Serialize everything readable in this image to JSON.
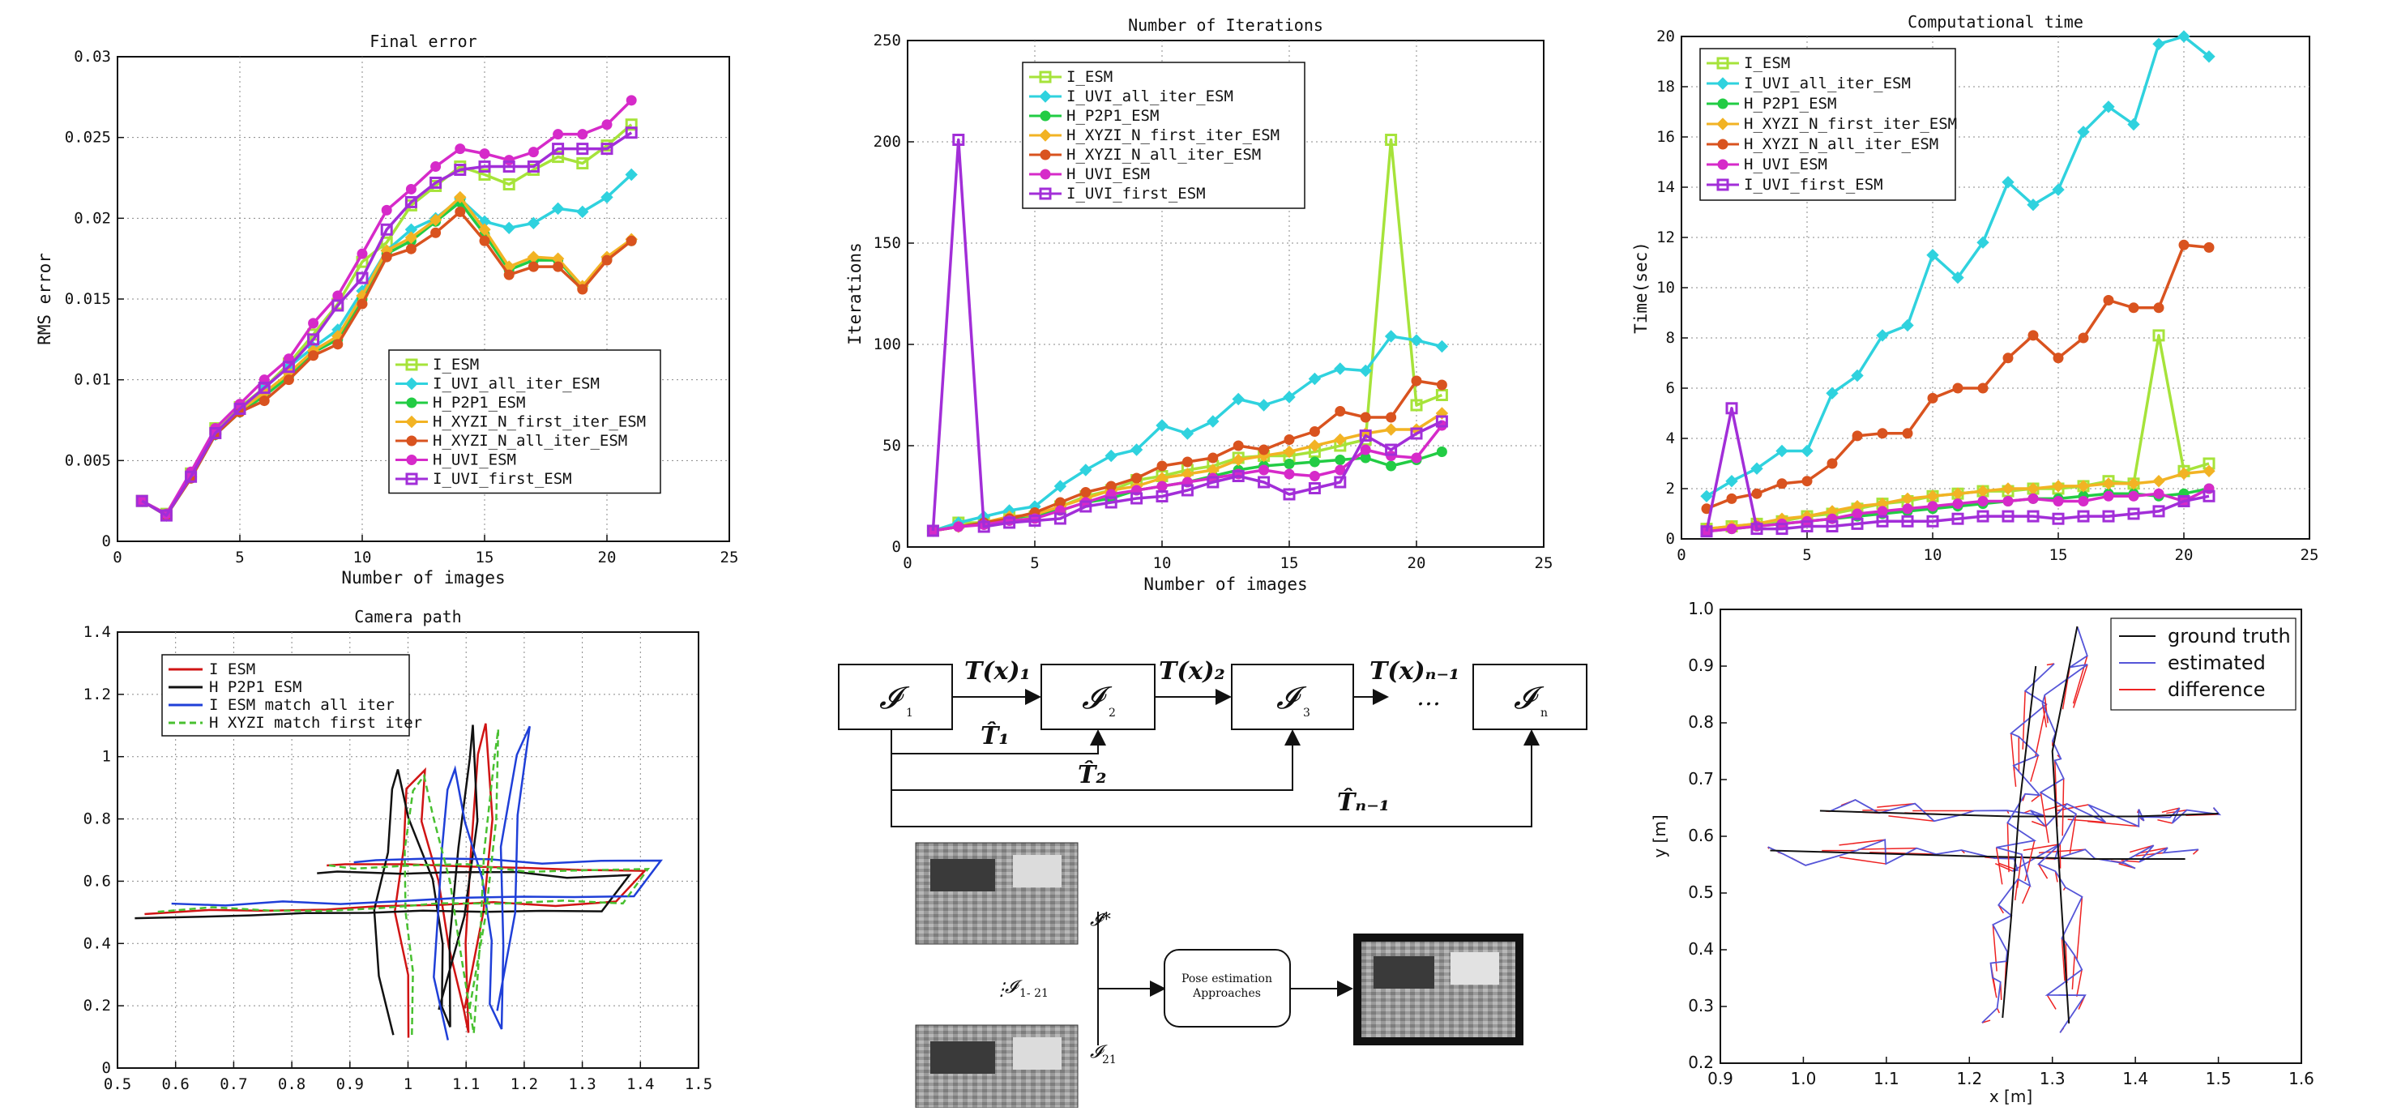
{
  "chart_data": [
    {
      "id": "final_error",
      "type": "line",
      "title": "Final error",
      "xlabel": "Number of images",
      "ylabel": "RMS error",
      "xlim": [
        0,
        25
      ],
      "ylim": [
        0,
        0.03
      ],
      "xticks": [
        "0",
        "5",
        "10",
        "15",
        "20",
        "25"
      ],
      "yticks": [
        "0",
        "0.005",
        "0.01",
        "0.015",
        "0.02",
        "0.025",
        "0.03"
      ],
      "grid": true,
      "legend_position": "center-right",
      "x": [
        1,
        2,
        3,
        4,
        5,
        6,
        7,
        8,
        9,
        10,
        11,
        12,
        13,
        14,
        15,
        16,
        17,
        18,
        19,
        20,
        21
      ],
      "series": [
        {
          "name": "I_ESM",
          "color": "#a6e33a",
          "marker": "square",
          "values": [
            0.0025,
            0.0017,
            0.0042,
            0.007,
            0.0083,
            0.0095,
            0.011,
            0.0128,
            0.0147,
            0.0173,
            0.0185,
            0.0208,
            0.022,
            0.0232,
            0.0227,
            0.0221,
            0.023,
            0.0238,
            0.0234,
            0.0245,
            0.0258
          ]
        },
        {
          "name": "I_UVI_all_iter_ESM",
          "color": "#2fd2de",
          "marker": "diamond",
          "values": [
            0.0025,
            0.0016,
            0.004,
            0.0066,
            0.008,
            0.0095,
            0.0108,
            0.012,
            0.0131,
            0.0155,
            0.018,
            0.0193,
            0.02,
            0.0212,
            0.0198,
            0.0194,
            0.0197,
            0.0206,
            0.0204,
            0.0213,
            0.0227
          ]
        },
        {
          "name": "H_P2P1_ESM",
          "color": "#22cc44",
          "marker": "circle",
          "values": [
            0.0025,
            0.0016,
            0.0039,
            0.0066,
            0.008,
            0.009,
            0.0102,
            0.0117,
            0.0125,
            0.015,
            0.0178,
            0.0186,
            0.0198,
            0.021,
            0.019,
            0.0168,
            0.0174,
            0.0174,
            0.0157,
            0.0175,
            0.0186
          ]
        },
        {
          "name": "H_XYZI_N_first_iter_ESM",
          "color": "#f2b324",
          "marker": "diamond",
          "values": [
            0.0025,
            0.0016,
            0.004,
            0.0067,
            0.0081,
            0.0092,
            0.0104,
            0.0118,
            0.0127,
            0.0152,
            0.018,
            0.0188,
            0.0199,
            0.0213,
            0.0193,
            0.017,
            0.0176,
            0.0175,
            0.0158,
            0.0176,
            0.0187
          ]
        },
        {
          "name": "H_XYZI_N_all_iter_ESM",
          "color": "#d9531f",
          "marker": "circle",
          "values": [
            0.0025,
            0.0016,
            0.0039,
            0.0066,
            0.008,
            0.0087,
            0.01,
            0.0115,
            0.0122,
            0.0147,
            0.0176,
            0.0181,
            0.0191,
            0.0204,
            0.0186,
            0.0165,
            0.017,
            0.017,
            0.0156,
            0.0174,
            0.0186
          ]
        },
        {
          "name": "H_UVI_ESM",
          "color": "#d62ac9",
          "marker": "circle",
          "values": [
            0.0025,
            0.0017,
            0.0043,
            0.007,
            0.0085,
            0.01,
            0.0113,
            0.0135,
            0.0152,
            0.0178,
            0.0205,
            0.0218,
            0.0232,
            0.0243,
            0.024,
            0.0236,
            0.0241,
            0.0252,
            0.0252,
            0.0258,
            0.0273
          ]
        },
        {
          "name": "I_UVI_first_ESM",
          "color": "#a22ed8",
          "marker": "square",
          "values": [
            0.0025,
            0.0016,
            0.004,
            0.0067,
            0.0082,
            0.0095,
            0.0108,
            0.0125,
            0.0146,
            0.0163,
            0.0193,
            0.021,
            0.0222,
            0.023,
            0.0232,
            0.0232,
            0.0232,
            0.0243,
            0.0243,
            0.0243,
            0.0253
          ]
        }
      ]
    },
    {
      "id": "iterations",
      "type": "line",
      "title": "Number of Iterations",
      "xlabel": "Number of images",
      "ylabel": "Iterations",
      "xlim": [
        0,
        25
      ],
      "ylim": [
        0,
        250
      ],
      "xticks": [
        "0",
        "5",
        "10",
        "15",
        "20",
        "25"
      ],
      "yticks": [
        "0",
        "50",
        "100",
        "150",
        "200",
        "250"
      ],
      "grid": true,
      "legend_position": "top-left",
      "x": [
        1,
        2,
        3,
        4,
        5,
        6,
        7,
        8,
        9,
        10,
        11,
        12,
        13,
        14,
        15,
        16,
        17,
        18,
        19,
        20,
        21
      ],
      "series": [
        {
          "name": "I_ESM",
          "color": "#a6e33a",
          "marker": "square",
          "values": [
            8,
            12,
            12,
            15,
            15,
            20,
            25,
            28,
            33,
            35,
            38,
            40,
            44,
            45,
            45,
            47,
            50,
            53,
            201,
            70,
            75
          ]
        },
        {
          "name": "I_UVI_all_iter_ESM",
          "color": "#2fd2de",
          "marker": "diamond",
          "values": [
            8,
            12,
            15,
            18,
            20,
            30,
            38,
            45,
            48,
            60,
            56,
            62,
            73,
            70,
            74,
            83,
            88,
            87,
            104,
            102,
            99
          ]
        },
        {
          "name": "H_P2P1_ESM",
          "color": "#22cc44",
          "marker": "circle",
          "values": [
            8,
            10,
            12,
            14,
            16,
            18,
            22,
            24,
            28,
            30,
            32,
            35,
            38,
            40,
            41,
            42,
            43,
            44,
            40,
            43,
            47
          ]
        },
        {
          "name": "H_XYZI_N_first_iter_ESM",
          "color": "#f2b324",
          "marker": "diamond",
          "values": [
            8,
            10,
            12,
            15,
            16,
            20,
            24,
            28,
            30,
            34,
            36,
            38,
            43,
            45,
            47,
            50,
            53,
            56,
            58,
            58,
            66
          ]
        },
        {
          "name": "H_XYZI_N_all_iter_ESM",
          "color": "#d9531f",
          "marker": "circle",
          "values": [
            8,
            10,
            12,
            14,
            17,
            22,
            27,
            30,
            34,
            40,
            42,
            44,
            50,
            48,
            53,
            57,
            67,
            64,
            64,
            82,
            80
          ]
        },
        {
          "name": "H_UVI_ESM",
          "color": "#d62ac9",
          "marker": "circle",
          "values": [
            8,
            10,
            11,
            13,
            14,
            18,
            22,
            26,
            28,
            30,
            32,
            34,
            36,
            38,
            36,
            35,
            38,
            48,
            45,
            44,
            60
          ]
        },
        {
          "name": "I_UVI_first_ESM",
          "color": "#a22ed8",
          "marker": "square",
          "values": [
            8,
            201,
            10,
            12,
            13,
            14,
            20,
            22,
            24,
            25,
            28,
            32,
            35,
            32,
            26,
            29,
            32,
            55,
            48,
            56,
            62
          ]
        }
      ]
    },
    {
      "id": "comp_time",
      "type": "line",
      "title": "Computational time",
      "xlabel": "",
      "ylabel": "Time(sec)",
      "xlim": [
        0,
        25
      ],
      "ylim": [
        0,
        20
      ],
      "xticks": [
        "0",
        "5",
        "10",
        "15",
        "20",
        "25"
      ],
      "yticks": [
        "0",
        "2",
        "4",
        "6",
        "8",
        "10",
        "12",
        "14",
        "16",
        "18",
        "20"
      ],
      "grid": true,
      "legend_position": "top-left",
      "x": [
        1,
        2,
        3,
        4,
        5,
        6,
        7,
        8,
        9,
        10,
        11,
        12,
        13,
        14,
        15,
        16,
        17,
        18,
        19,
        20,
        21
      ],
      "series": [
        {
          "name": "I_ESM",
          "color": "#a6e33a",
          "marker": "square",
          "values": [
            0.4,
            0.5,
            0.6,
            0.7,
            0.9,
            1.0,
            1.2,
            1.4,
            1.5,
            1.7,
            1.8,
            1.9,
            1.9,
            2.0,
            2.0,
            2.1,
            2.3,
            2.2,
            8.1,
            2.7,
            3.0
          ]
        },
        {
          "name": "I_UVI_all_iter_ESM",
          "color": "#2fd2de",
          "marker": "diamond",
          "values": [
            1.7,
            2.3,
            2.8,
            3.5,
            3.5,
            5.8,
            6.5,
            8.1,
            8.5,
            11.3,
            10.4,
            11.8,
            14.2,
            13.3,
            13.9,
            16.2,
            17.2,
            16.5,
            19.7,
            20.0,
            19.2
          ]
        },
        {
          "name": "H_P2P1_ESM",
          "color": "#22cc44",
          "marker": "circle",
          "values": [
            0.3,
            0.4,
            0.5,
            0.6,
            0.7,
            0.8,
            0.9,
            1.0,
            1.1,
            1.2,
            1.3,
            1.4,
            1.5,
            1.6,
            1.6,
            1.7,
            1.8,
            1.8,
            1.7,
            1.8,
            2.0
          ]
        },
        {
          "name": "H_XYZI_N_first_iter_ESM",
          "color": "#f2b324",
          "marker": "diamond",
          "values": [
            0.4,
            0.5,
            0.6,
            0.8,
            0.9,
            1.1,
            1.3,
            1.4,
            1.6,
            1.7,
            1.8,
            1.9,
            2.0,
            2.0,
            2.1,
            2.1,
            2.2,
            2.2,
            2.3,
            2.6,
            2.7
          ]
        },
        {
          "name": "H_XYZI_N_all_iter_ESM",
          "color": "#d9531f",
          "marker": "circle",
          "values": [
            1.2,
            1.6,
            1.8,
            2.2,
            2.3,
            3.0,
            4.1,
            4.2,
            4.2,
            5.6,
            6.0,
            6.0,
            7.2,
            8.1,
            7.2,
            8.0,
            9.5,
            9.2,
            9.2,
            11.7,
            11.6
          ]
        },
        {
          "name": "H_UVI_ESM",
          "color": "#d62ac9",
          "marker": "circle",
          "values": [
            0.3,
            0.4,
            0.5,
            0.6,
            0.7,
            0.8,
            1.0,
            1.1,
            1.2,
            1.3,
            1.4,
            1.5,
            1.5,
            1.6,
            1.5,
            1.5,
            1.7,
            1.7,
            1.8,
            1.5,
            2.0
          ]
        },
        {
          "name": "I_UVI_first_ESM",
          "color": "#a22ed8",
          "marker": "square",
          "values": [
            0.3,
            5.2,
            0.4,
            0.4,
            0.5,
            0.5,
            0.6,
            0.7,
            0.7,
            0.7,
            0.8,
            0.9,
            0.9,
            0.9,
            0.8,
            0.9,
            0.9,
            1.0,
            1.1,
            1.5,
            1.7
          ]
        }
      ]
    },
    {
      "id": "camera_path",
      "type": "line",
      "title": "Camera path",
      "xlabel": "",
      "ylabel": "",
      "xlim": [
        0.5,
        1.5
      ],
      "ylim": [
        0,
        1.4
      ],
      "xticks": [
        "0.5",
        "0.6",
        "0.7",
        "0.8",
        "0.9",
        "1",
        "1.1",
        "1.2",
        "1.3",
        "1.4",
        "1.5"
      ],
      "yticks": [
        "0",
        "0.2",
        "0.4",
        "0.6",
        "0.8",
        "1",
        "1.2",
        "1.4"
      ],
      "grid": true,
      "legend_position": "top-left",
      "series": [
        {
          "name": "I ESM",
          "color": "#d01414",
          "style": "solid"
        },
        {
          "name": "H P2P1 ESM",
          "color": "#111111",
          "style": "solid"
        },
        {
          "name": "I ESM match all iter",
          "color": "#1f3fd8",
          "style": "solid"
        },
        {
          "name": "H XYZI match first iter",
          "color": "#48c030",
          "style": "dashed"
        }
      ],
      "paths": [
        {
          "x": [
            1.0,
            0.99,
            0.98,
            0.97,
            0.97,
            0.99,
            1.02,
            1.04,
            1.06,
            1.08,
            1.1,
            1.11,
            1.13,
            1.14,
            1.14,
            1.12,
            1.1,
            1.08,
            1.07,
            1.06,
            1.05
          ]
        },
        {
          "x": [
            0.55,
            0.65,
            0.75,
            0.85,
            0.95,
            1.05,
            1.15,
            1.25,
            1.35
          ]
        },
        {
          "x": [
            0.86,
            0.95,
            1.05,
            1.15,
            1.25,
            1.32,
            1.38,
            1.41
          ]
        }
      ]
    },
    {
      "id": "ground_truth_xy",
      "type": "line",
      "title": "",
      "xlabel": "x [m]",
      "ylabel": "y [m]",
      "xlim": [
        0.9,
        1.6
      ],
      "ylim": [
        0.2,
        1.0
      ],
      "xticks": [
        "0.9",
        "1.0",
        "1.1",
        "1.2",
        "1.3",
        "1.4",
        "1.5",
        "1.6"
      ],
      "yticks": [
        "0.2",
        "0.3",
        "0.4",
        "0.5",
        "0.6",
        "0.7",
        "0.8",
        "0.9",
        "1.0"
      ],
      "grid": false,
      "legend_position": "top-right",
      "series": [
        {
          "name": "ground truth",
          "color": "#111111"
        },
        {
          "name": "estimated",
          "color": "#5555d8"
        },
        {
          "name": "difference",
          "color": "#ee2222"
        }
      ]
    }
  ],
  "diagram": {
    "nodes": [
      "𝓘",
      "𝓘",
      "𝓘",
      "𝓘"
    ],
    "node_subscripts": [
      "1",
      "2",
      "3",
      "n"
    ],
    "arrow_labels_top": [
      "T(x)₁",
      "T(x)₂",
      "T(x)ₙ₋₁"
    ],
    "ellipsis": "…",
    "hat_labels": [
      "T̂₁",
      "T̂₂",
      "T̂ₙ₋₁"
    ],
    "pipeline": {
      "label_top": "𝓘*",
      "label_mid": "𝓘",
      "label_mid_sub": "1- 21",
      "label_bottom": "𝓘",
      "label_bottom_sub": "21",
      "box_text_1": "Pose estimation",
      "box_text_2": "Approaches",
      "dots": "⋮"
    }
  }
}
